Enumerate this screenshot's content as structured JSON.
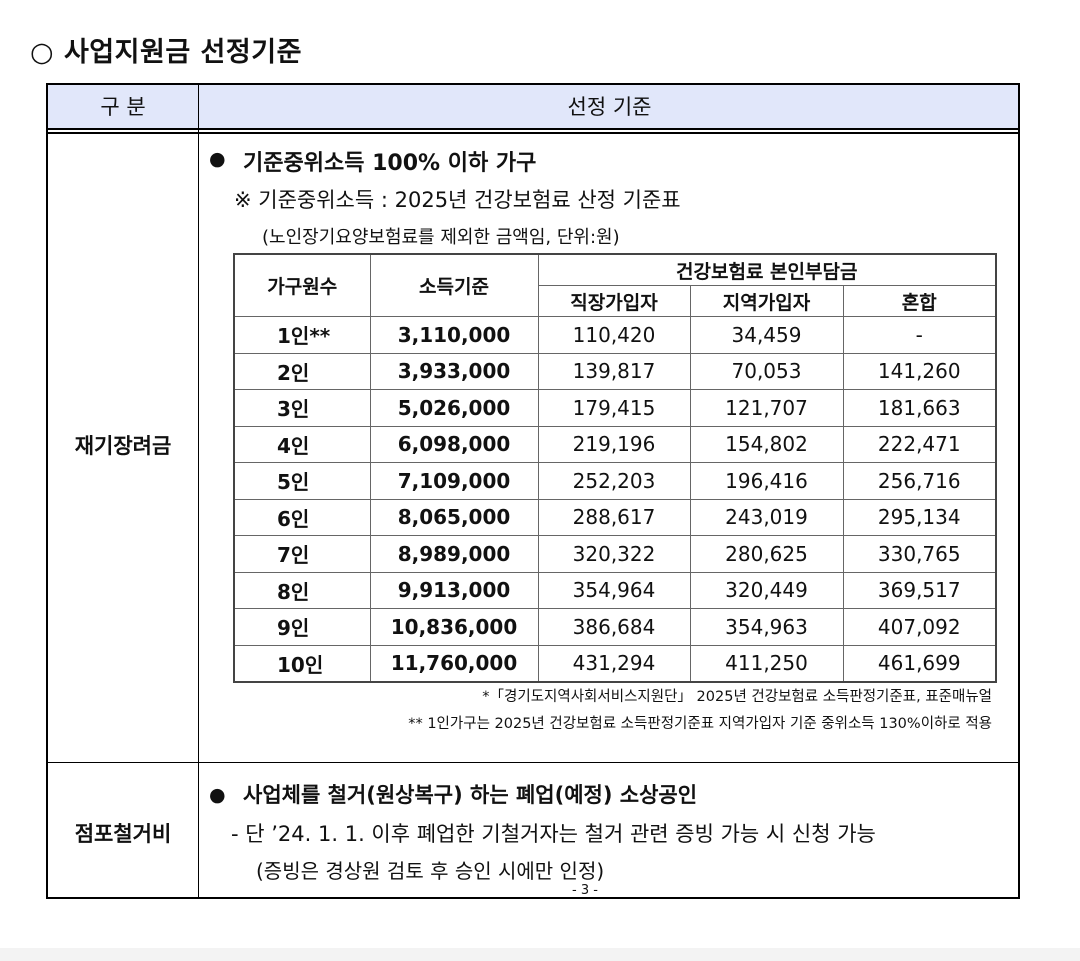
{
  "heading": "○ 사업지원금 선정기준",
  "table_header": {
    "category": "구 분",
    "criteria": "선정 기준"
  },
  "section1": {
    "label": "재기장려금",
    "bullet": "●",
    "main": "기준중위소득 100% 이하 가구",
    "note": "※ 기준중위소득 : 2025년 건강보험료 산정 기준표",
    "unit_note": "(노인장기요양보험료를 제외한 금액임, 단위:원)",
    "income_table": {
      "headers": {
        "household": "가구원수",
        "income": "소득기준",
        "premium_group": "건강보험료 본인부담금",
        "employee": "직장가입자",
        "regional": "지역가입자",
        "mixed": "혼합"
      },
      "rows": [
        {
          "household": "1인**",
          "income": "3,110,000",
          "employee": "110,420",
          "regional": "34,459",
          "mixed": "-"
        },
        {
          "household": "2인",
          "income": "3,933,000",
          "employee": "139,817",
          "regional": "70,053",
          "mixed": "141,260"
        },
        {
          "household": "3인",
          "income": "5,026,000",
          "employee": "179,415",
          "regional": "121,707",
          "mixed": "181,663"
        },
        {
          "household": "4인",
          "income": "6,098,000",
          "employee": "219,196",
          "regional": "154,802",
          "mixed": "222,471"
        },
        {
          "household": "5인",
          "income": "7,109,000",
          "employee": "252,203",
          "regional": "196,416",
          "mixed": "256,716"
        },
        {
          "household": "6인",
          "income": "8,065,000",
          "employee": "288,617",
          "regional": "243,019",
          "mixed": "295,134"
        },
        {
          "household": "7인",
          "income": "8,989,000",
          "employee": "320,322",
          "regional": "280,625",
          "mixed": "330,765"
        },
        {
          "household": "8인",
          "income": "9,913,000",
          "employee": "354,964",
          "regional": "320,449",
          "mixed": "369,517"
        },
        {
          "household": "9인",
          "income": "10,836,000",
          "employee": "386,684",
          "regional": "354,963",
          "mixed": "407,092"
        },
        {
          "household": "10인",
          "income": "11,760,000",
          "employee": "431,294",
          "regional": "411,250",
          "mixed": "461,699"
        }
      ]
    },
    "source": "*「경기도지역사회서비스지원단」 2025년 건강보험료 소득판정기준표, 표준매뉴얼",
    "footnote": "** 1인가구는 2025년 건강보험료 소득판정기준표 지역가입자 기준 중위소득 130%이하로 적용"
  },
  "section2": {
    "label": "점포철거비",
    "bullet": "●",
    "main": "사업체를 철거(원상복구) 하는 폐업(예정) 소상공인",
    "sub": "- 단 ’24. 1. 1. 이후 폐업한 기철거자는 철거 관련 증빙 가능 시 신청 가능",
    "sub_note": "(증빙은 경상원 검토 후 승인 시에만 인정)"
  },
  "page_number": "- 3 -"
}
